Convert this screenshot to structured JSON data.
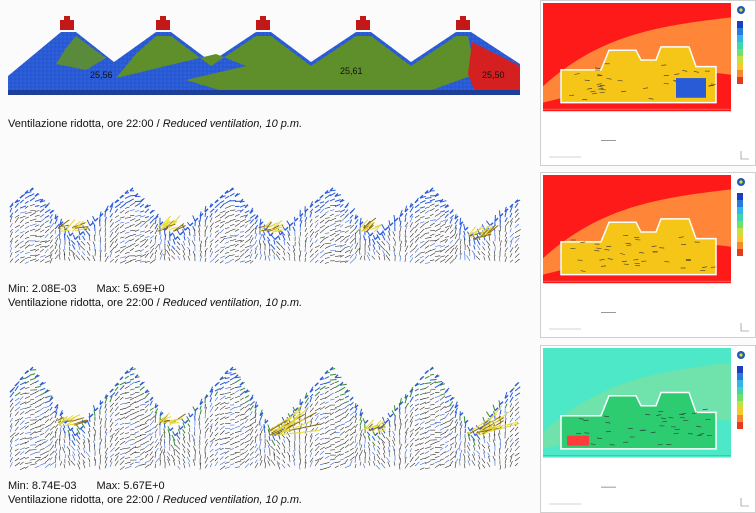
{
  "figure": {
    "panels": [
      {
        "kind": "temperature-map",
        "labels": [
          "25,56",
          "25,61",
          "25,50"
        ],
        "caption_it": "Ventilazione ridotta, ore 22:00 / ",
        "caption_en": "Reduced ventilation, 10 p.m."
      },
      {
        "kind": "velocity-vectors",
        "min_label": "Min: 2.08E-03",
        "max_label": "Max: 5.69E+0",
        "caption_it": "Ventilazione ridotta, ore 22:00 / ",
        "caption_en": "Reduced ventilation, 10 p.m."
      },
      {
        "kind": "velocity-vectors",
        "min_label": "Min: 8.74E-03",
        "max_label": "Max: 5.67E+0",
        "caption_it": "Ventilazione ridotta, ore 22:00 / ",
        "caption_en": "Reduced ventilation, 10 p.m."
      }
    ],
    "side_views": [
      {
        "name": "cfd-section-1",
        "background": "#ff1a1a"
      },
      {
        "name": "cfd-section-2",
        "background": "#ff1a1a"
      },
      {
        "name": "cfd-section-3",
        "background": "#4de8c8"
      }
    ],
    "colors": {
      "blue": "#2a5bd7",
      "green": "#5f8f2a",
      "red": "#d42020",
      "yellow": "#e8d838"
    }
  }
}
